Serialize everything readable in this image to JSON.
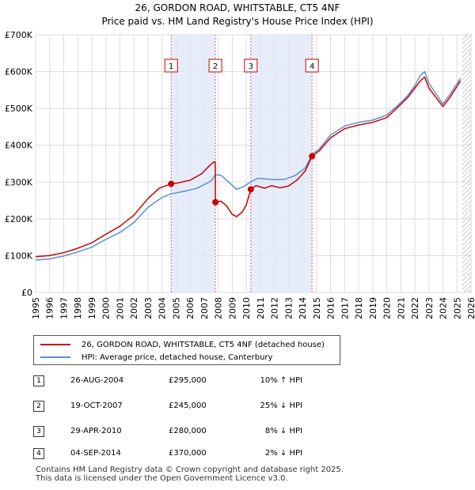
{
  "chart_data": {
    "type": "line",
    "title": "26, GORDON ROAD, WHITSTABLE, CT5 4NF",
    "subtitle": "Price paid vs. HM Land Registry's House Price Index (HPI)",
    "x_range": [
      1995,
      2026
    ],
    "ylim": [
      0,
      700000
    ],
    "y_ticks": [
      0,
      100000,
      200000,
      300000,
      400000,
      500000,
      600000,
      700000
    ],
    "y_tick_labels": [
      "£0",
      "£100K",
      "£200K",
      "£300K",
      "£400K",
      "£500K",
      "£600K",
      "£700K"
    ],
    "x_ticks": [
      1995,
      1996,
      1997,
      1998,
      1999,
      2000,
      2001,
      2002,
      2003,
      2004,
      2005,
      2006,
      2007,
      2008,
      2009,
      2010,
      2011,
      2012,
      2013,
      2014,
      2015,
      2016,
      2017,
      2018,
      2019,
      2020,
      2021,
      2022,
      2023,
      2024,
      2025,
      2026
    ],
    "grid": true,
    "series": [
      {
        "name": "26, GORDON ROAD, WHITSTABLE, CT5 4NF (detached house)",
        "color": "#cc0000",
        "points": [
          [
            1995.0,
            97000
          ],
          [
            1996.0,
            100000
          ],
          [
            1997.0,
            108000
          ],
          [
            1998.0,
            120000
          ],
          [
            1999.0,
            135000
          ],
          [
            2000.0,
            158000
          ],
          [
            2001.0,
            180000
          ],
          [
            2002.0,
            210000
          ],
          [
            2003.0,
            255000
          ],
          [
            2003.8,
            283000
          ],
          [
            2004.65,
            295000
          ],
          [
            2005.2,
            298000
          ],
          [
            2006.0,
            305000
          ],
          [
            2006.8,
            322000
          ],
          [
            2007.4,
            345000
          ],
          [
            2007.7,
            355000
          ],
          [
            2007.79,
            355000
          ],
          [
            2007.8,
            245000
          ],
          [
            2008.2,
            248000
          ],
          [
            2008.6,
            235000
          ],
          [
            2009.0,
            212000
          ],
          [
            2009.3,
            206000
          ],
          [
            2009.7,
            218000
          ],
          [
            2010.0,
            238000
          ],
          [
            2010.32,
            280000
          ],
          [
            2010.7,
            290000
          ],
          [
            2011.3,
            283000
          ],
          [
            2011.8,
            290000
          ],
          [
            2012.4,
            284000
          ],
          [
            2013.0,
            289000
          ],
          [
            2013.6,
            305000
          ],
          [
            2014.2,
            330000
          ],
          [
            2014.68,
            370000
          ],
          [
            2015.2,
            385000
          ],
          [
            2016.0,
            420000
          ],
          [
            2017.0,
            445000
          ],
          [
            2018.0,
            455000
          ],
          [
            2019.0,
            462000
          ],
          [
            2020.0,
            475000
          ],
          [
            2020.7,
            500000
          ],
          [
            2021.5,
            530000
          ],
          [
            2022.0,
            555000
          ],
          [
            2022.4,
            575000
          ],
          [
            2022.7,
            585000
          ],
          [
            2023.0,
            555000
          ],
          [
            2023.5,
            530000
          ],
          [
            2024.0,
            505000
          ],
          [
            2024.5,
            530000
          ],
          [
            2025.0,
            560000
          ],
          [
            2025.25,
            575000
          ]
        ]
      },
      {
        "name": "HPI: Average price, detached house, Canterbury",
        "color": "#5b8fd6",
        "points": [
          [
            1995.0,
            88000
          ],
          [
            1996.0,
            91000
          ],
          [
            1997.0,
            99000
          ],
          [
            1998.0,
            110000
          ],
          [
            1999.0,
            123000
          ],
          [
            2000.0,
            144000
          ],
          [
            2001.0,
            163000
          ],
          [
            2002.0,
            190000
          ],
          [
            2003.0,
            231000
          ],
          [
            2004.0,
            258000
          ],
          [
            2004.65,
            268000
          ],
          [
            2005.5,
            274000
          ],
          [
            2006.5,
            283000
          ],
          [
            2007.5,
            303000
          ],
          [
            2007.8,
            320000
          ],
          [
            2008.2,
            318000
          ],
          [
            2008.8,
            298000
          ],
          [
            2009.3,
            280000
          ],
          [
            2009.8,
            287000
          ],
          [
            2010.3,
            300000
          ],
          [
            2010.8,
            310000
          ],
          [
            2011.5,
            308000
          ],
          [
            2012.2,
            306000
          ],
          [
            2012.8,
            308000
          ],
          [
            2013.5,
            318000
          ],
          [
            2014.2,
            338000
          ],
          [
            2014.68,
            375000
          ],
          [
            2015.2,
            390000
          ],
          [
            2016.0,
            428000
          ],
          [
            2017.0,
            452000
          ],
          [
            2018.0,
            462000
          ],
          [
            2019.0,
            468000
          ],
          [
            2020.0,
            482000
          ],
          [
            2020.7,
            505000
          ],
          [
            2021.5,
            535000
          ],
          [
            2022.0,
            562000
          ],
          [
            2022.4,
            590000
          ],
          [
            2022.7,
            600000
          ],
          [
            2023.0,
            568000
          ],
          [
            2023.5,
            540000
          ],
          [
            2024.0,
            512000
          ],
          [
            2024.5,
            538000
          ],
          [
            2025.0,
            568000
          ],
          [
            2025.25,
            582000
          ]
        ]
      }
    ],
    "sales": [
      {
        "num": "1",
        "year": 2004.65,
        "price": 295000
      },
      {
        "num": "2",
        "year": 2007.8,
        "price": 245000
      },
      {
        "num": "3",
        "year": 2010.32,
        "price": 280000
      },
      {
        "num": "4",
        "year": 2014.68,
        "price": 370000
      }
    ],
    "shaded_periods": [
      [
        2004.65,
        2007.8
      ],
      [
        2010.32,
        2014.68
      ]
    ],
    "forecast_from": 2025.25
  },
  "legend": {
    "property": "26, GORDON ROAD, WHITSTABLE, CT5 4NF (detached house)",
    "hpi": "HPI: Average price, detached house, Canterbury"
  },
  "transactions": [
    {
      "num": "1",
      "date": "26-AUG-2004",
      "price": "£295,000",
      "diff": "10% ↑ HPI"
    },
    {
      "num": "2",
      "date": "19-OCT-2007",
      "price": "£245,000",
      "diff": "25% ↓ HPI"
    },
    {
      "num": "3",
      "date": "29-APR-2010",
      "price": "£280,000",
      "diff": "8% ↓ HPI"
    },
    {
      "num": "4",
      "date": "04-SEP-2014",
      "price": "£370,000",
      "diff": "2% ↓ HPI"
    }
  ],
  "footer": {
    "line1": "Contains HM Land Registry data © Crown copyright and database right 2025.",
    "line2": "This data is licensed under the Open Government Licence v3.0."
  }
}
